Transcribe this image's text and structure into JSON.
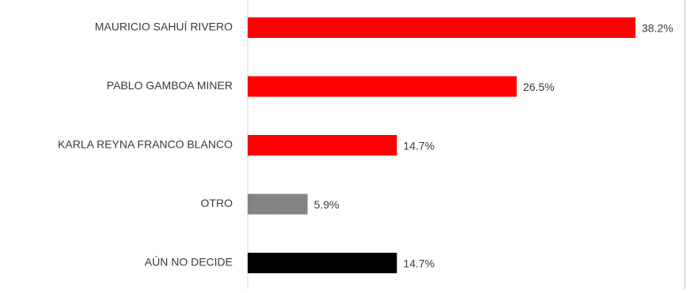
{
  "chart_data": {
    "type": "bar",
    "orientation": "horizontal",
    "title": "",
    "xlabel": "",
    "ylabel": "",
    "categories": [
      "MAURICIO SAHUÍ RIVERO",
      "PABLO GAMBOA MINER",
      "KARLA REYNA FRANCO BLANCO",
      "OTRO",
      "AÚN NO DECIDE"
    ],
    "values": [
      38.2,
      26.5,
      14.7,
      5.9,
      14.7
    ],
    "value_labels": [
      "38.2%",
      "26.5%",
      "14.7%",
      "5.9%",
      "14.7%"
    ],
    "bar_colors": [
      "#ff0000",
      "#ff0000",
      "#ff0000",
      "#7f7f7f",
      "#000000"
    ],
    "xlim": [
      0,
      40
    ],
    "grid": false,
    "legend": "none"
  }
}
